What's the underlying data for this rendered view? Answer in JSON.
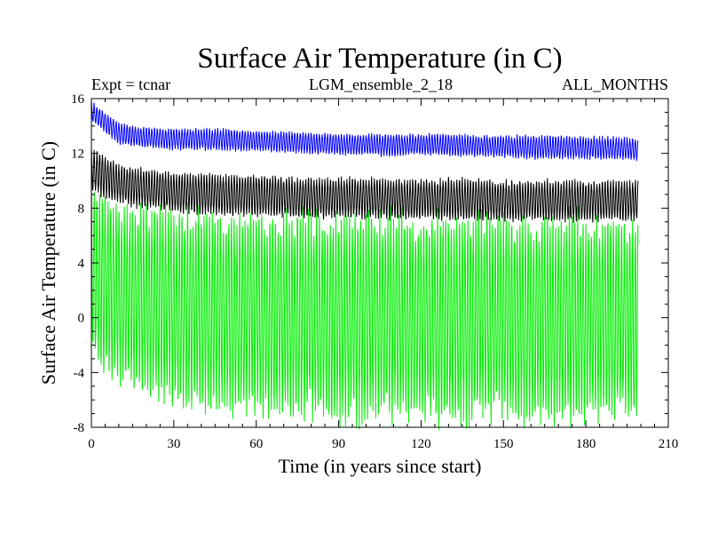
{
  "chart_data": {
    "type": "line",
    "title": "Surface Air Temperature (in C)",
    "subtitle_left": "Expt = tcnar",
    "subtitle_center": "LGM_ensemble_2_18",
    "subtitle_right": "ALL_MONTHS",
    "xlabel": "Time (in years since start)",
    "ylabel": "Surface Air Temperature (in C)",
    "xlim": [
      0,
      210
    ],
    "ylim": [
      -8,
      16
    ],
    "xticks": [
      0,
      30,
      60,
      90,
      120,
      150,
      180,
      210
    ],
    "yticks": [
      -8,
      -4,
      0,
      4,
      8,
      12,
      16
    ],
    "x_end": 199,
    "series": [
      {
        "name": "green",
        "color": "#00ee00",
        "start_year": 0,
        "step_years": 10,
        "annual_max": [
          9.5,
          8.2,
          7.9,
          7.8,
          7.6,
          7.5,
          7.6,
          7.4,
          7.5,
          7.3,
          7.4,
          7.3,
          7.3,
          7.2,
          7.3,
          7.2,
          7.2,
          7.1,
          7.2,
          7.1,
          7.1
        ],
        "annual_min": [
          -3.0,
          -4.8,
          -5.5,
          -6.2,
          -6.5,
          -6.6,
          -6.9,
          -7.0,
          -7.1,
          -7.3,
          -7.4,
          -7.2,
          -7.3,
          -7.4,
          -7.3,
          -7.2,
          -7.3,
          -7.4,
          -7.3,
          -7.2,
          -7.1
        ]
      },
      {
        "name": "black",
        "color": "#000000",
        "start_year": 0,
        "step_years": 10,
        "annual_max": [
          12.4,
          11.2,
          10.8,
          10.6,
          10.5,
          10.4,
          10.4,
          10.3,
          10.2,
          10.2,
          10.2,
          10.1,
          10.1,
          10.1,
          10.1,
          10.0,
          10.0,
          10.0,
          10.0,
          10.0,
          10.0
        ],
        "annual_min": [
          9.2,
          8.4,
          8.0,
          7.8,
          7.6,
          7.5,
          7.5,
          7.4,
          7.3,
          7.3,
          7.3,
          7.2,
          7.2,
          7.2,
          7.2,
          7.1,
          7.1,
          7.1,
          7.1,
          7.1,
          7.0
        ]
      },
      {
        "name": "blue",
        "color": "#0000ff",
        "start_year": 0,
        "step_years": 10,
        "annual_max": [
          15.8,
          14.2,
          13.9,
          13.8,
          13.8,
          13.8,
          13.6,
          13.6,
          13.5,
          13.4,
          13.4,
          13.4,
          13.4,
          13.4,
          13.3,
          13.3,
          13.3,
          13.3,
          13.2,
          13.2,
          13.1
        ],
        "annual_min": [
          14.4,
          12.7,
          12.4,
          12.3,
          12.3,
          12.2,
          12.2,
          12.1,
          12.0,
          11.9,
          11.9,
          11.8,
          11.9,
          11.8,
          11.8,
          11.7,
          11.6,
          11.6,
          11.6,
          11.6,
          11.5
        ]
      }
    ]
  }
}
